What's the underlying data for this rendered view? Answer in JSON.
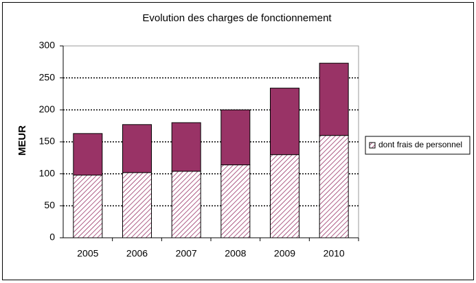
{
  "chart_data": {
    "type": "stacked_bar",
    "title": "Evolution des charges de fonctionnement",
    "y_label": "MEUR",
    "categories": [
      "2005",
      "2006",
      "2007",
      "2008",
      "2009",
      "2010"
    ],
    "series": [
      {
        "name": "dont frais de personnel",
        "color": "#993366",
        "pattern": "hatch",
        "values": [
          98,
          102,
          104,
          114,
          130,
          160
        ]
      },
      {
        "color": "#993366",
        "values": [
          65,
          75,
          76,
          86,
          104,
          113
        ]
      }
    ],
    "ylim": [
      0,
      300
    ],
    "yticks": [
      0,
      50,
      100,
      150,
      200,
      250,
      300
    ],
    "grid": true,
    "legend": "right"
  }
}
